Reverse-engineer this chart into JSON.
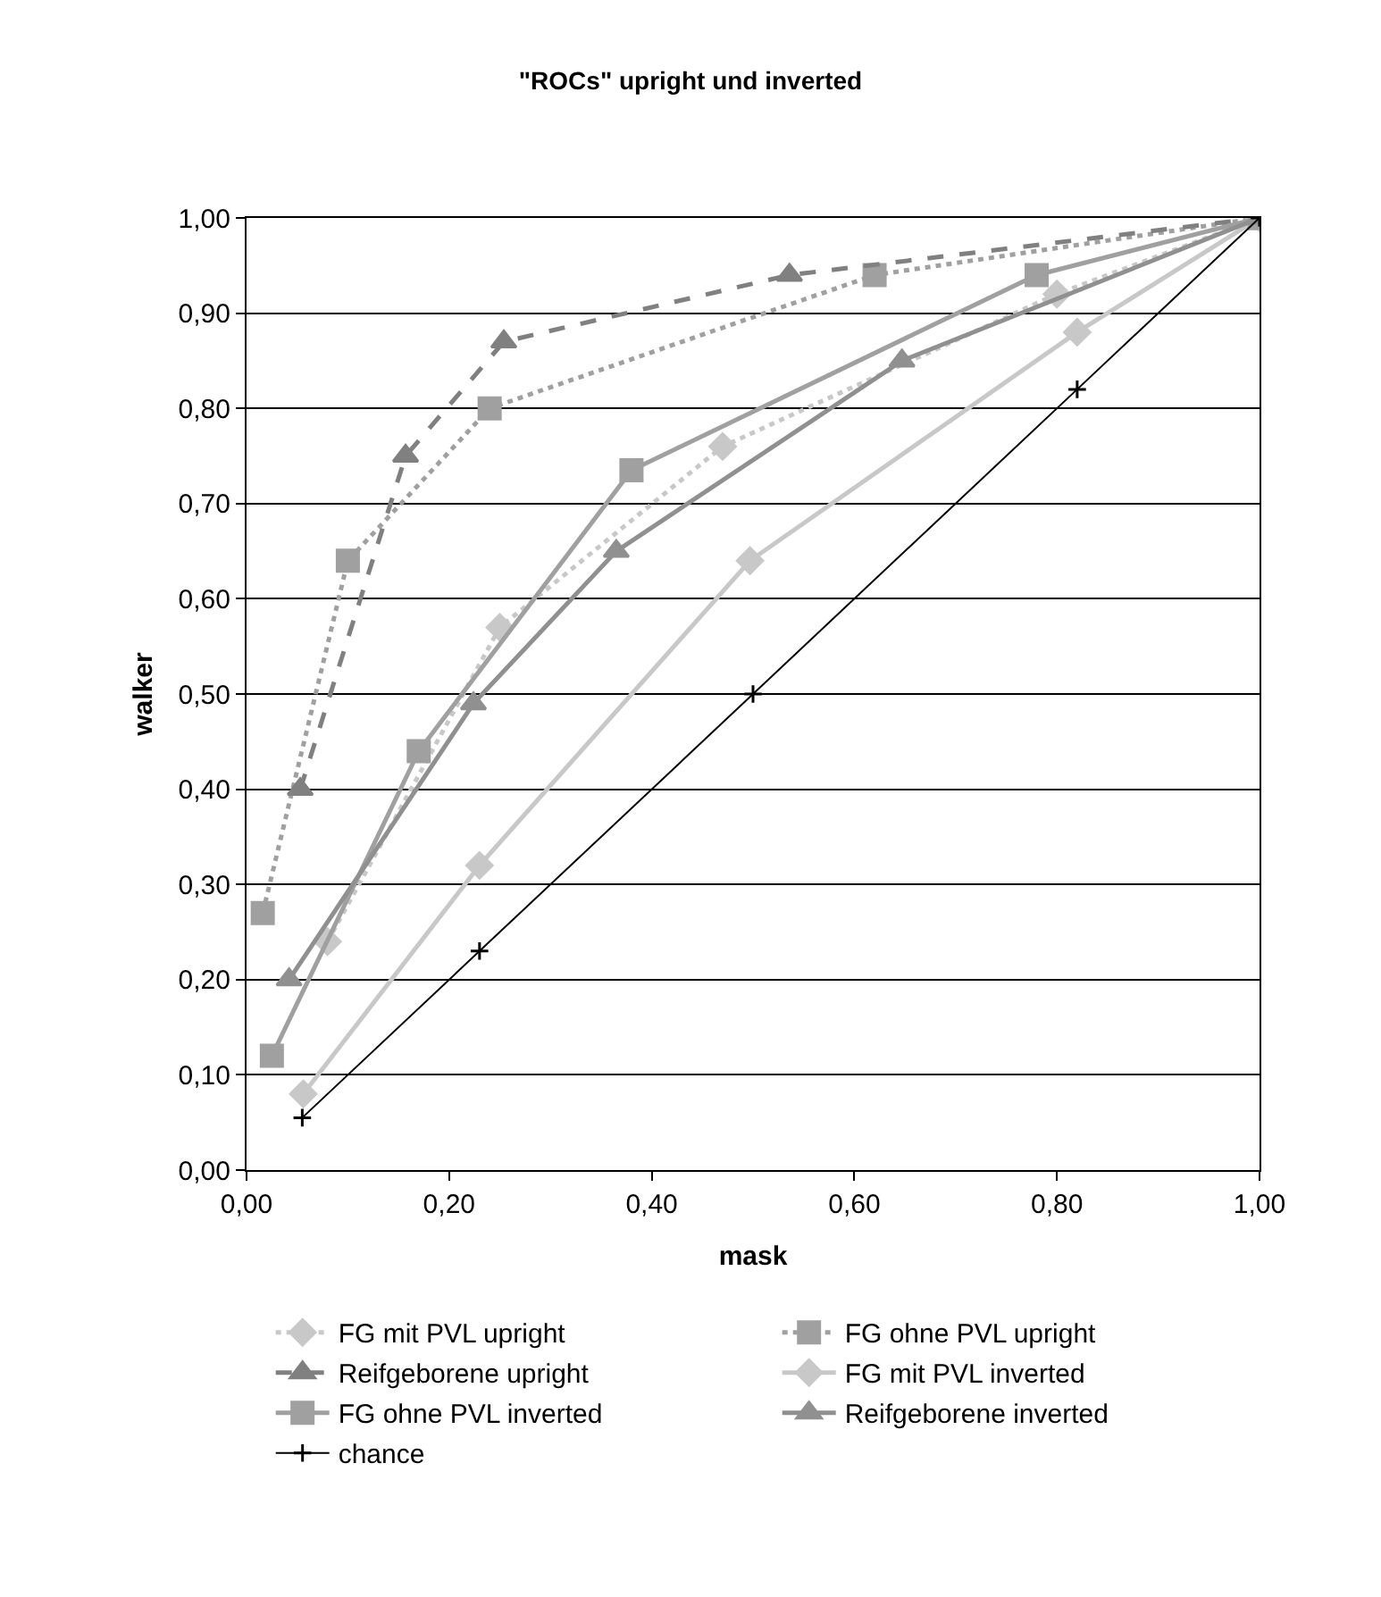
{
  "chart_data": {
    "type": "line",
    "title": "\"ROCs\" upright und inverted",
    "xlabel": "mask",
    "ylabel": "walker",
    "xlim": [
      0,
      1
    ],
    "xticks": [
      {
        "value": 0,
        "label": "0,00"
      },
      {
        "value": 0.2,
        "label": "0,20"
      },
      {
        "value": 0.4,
        "label": "0,40"
      },
      {
        "value": 0.6,
        "label": "0,60"
      },
      {
        "value": 0.8,
        "label": "0,80"
      },
      {
        "value": 1,
        "label": "1,00"
      }
    ],
    "ylim": [
      0,
      1
    ],
    "yticks": [
      {
        "value": 0,
        "label": "0,00"
      },
      {
        "value": 0.1,
        "label": "0,10"
      },
      {
        "value": 0.2,
        "label": "0,20"
      },
      {
        "value": 0.3,
        "label": "0,30"
      },
      {
        "value": 0.4,
        "label": "0,40"
      },
      {
        "value": 0.5,
        "label": "0,50"
      },
      {
        "value": 0.6,
        "label": "0,60"
      },
      {
        "value": 0.7,
        "label": "0,70"
      },
      {
        "value": 0.8,
        "label": "0,80"
      },
      {
        "value": 0.9,
        "label": "0,90"
      },
      {
        "value": 1,
        "label": "1,00"
      }
    ],
    "grid": "y",
    "legend": "bottom",
    "series": [
      {
        "name": "FG mit PVL upright",
        "color": "#c8c8c8",
        "marker": "diamond",
        "line_style": "dotted",
        "x": [
          0.08,
          0.25,
          0.47,
          0.8,
          1
        ],
        "values": [
          0.24,
          0.57,
          0.76,
          0.92,
          1
        ]
      },
      {
        "name": "FG ohne PVL upright",
        "color": "#a0a0a0",
        "marker": "square",
        "line_style": "dotted",
        "x": [
          0.016,
          0.1,
          0.24,
          0.62,
          1
        ],
        "values": [
          0.27,
          0.64,
          0.8,
          0.94,
          1
        ]
      },
      {
        "name": "Reifgeborene upright",
        "color": "#808080",
        "marker": "triangle",
        "line_style": "dashed",
        "x": [
          0.053,
          0.157,
          0.254,
          0.536,
          1
        ],
        "values": [
          0.4,
          0.75,
          0.87,
          0.94,
          1
        ]
      },
      {
        "name": "FG mit PVL inverted",
        "color": "#c8c8c8",
        "marker": "diamond",
        "line_style": "solid",
        "x": [
          0.056,
          0.23,
          0.497,
          0.82,
          1
        ],
        "values": [
          0.08,
          0.32,
          0.64,
          0.88,
          1
        ]
      },
      {
        "name": "FG ohne PVL inverted",
        "color": "#a0a0a0",
        "marker": "square",
        "line_style": "solid",
        "x": [
          0.025,
          0.17,
          0.38,
          0.78,
          1
        ],
        "values": [
          0.12,
          0.44,
          0.735,
          0.94,
          1
        ]
      },
      {
        "name": "Reifgeborene inverted",
        "color": "#909090",
        "marker": "triangle",
        "line_style": "solid",
        "x": [
          0.042,
          0.224,
          0.365,
          0.647,
          1
        ],
        "values": [
          0.2,
          0.49,
          0.65,
          0.85,
          1
        ]
      },
      {
        "name": "chance",
        "color": "#000000",
        "marker": "cross",
        "line_style": "solid",
        "x": [
          0.055,
          0.23,
          0.5,
          0.82,
          1
        ],
        "values": [
          0.055,
          0.23,
          0.5,
          0.82,
          1
        ]
      }
    ]
  }
}
